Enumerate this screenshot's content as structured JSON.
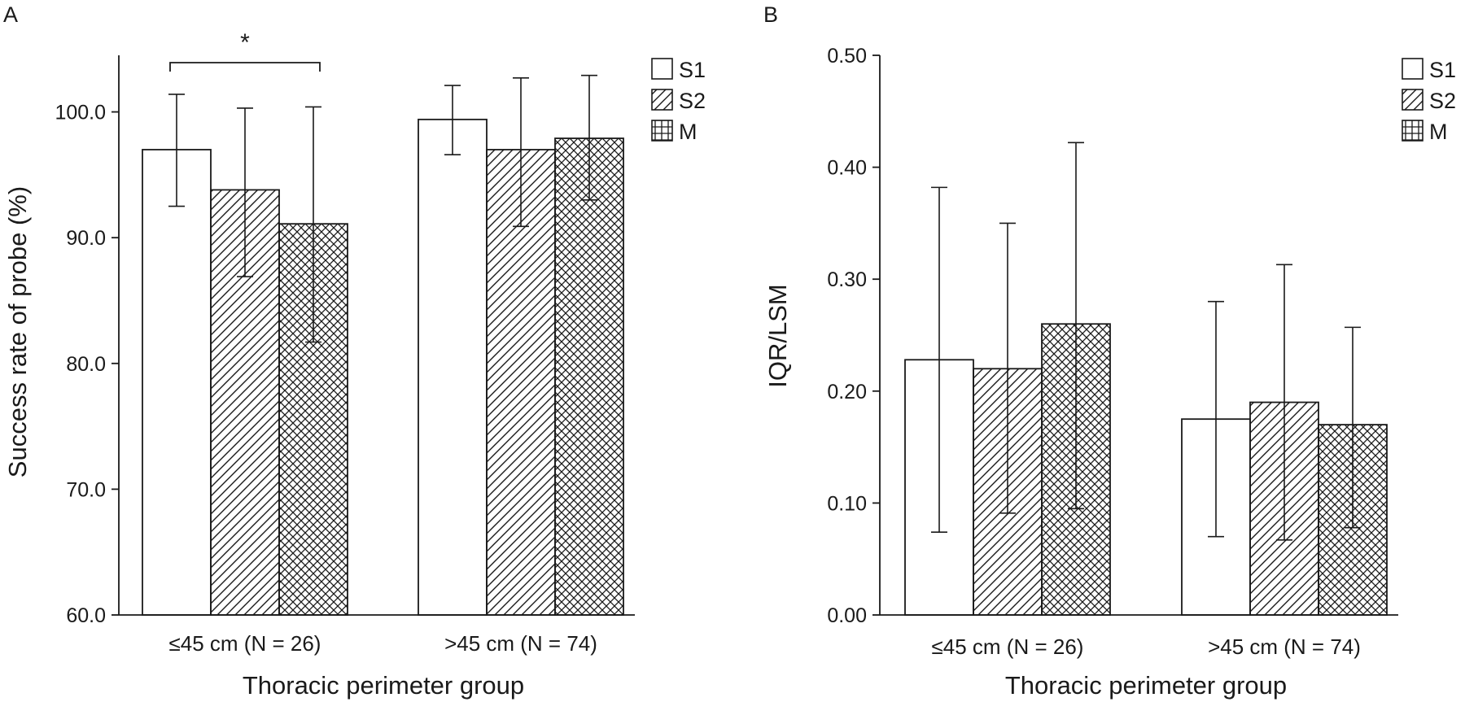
{
  "chart_data": [
    {
      "panel": "A",
      "type": "bar",
      "xlabel": "Thoracic perimeter group",
      "ylabel": "Success rate of probe (%)",
      "ylim": [
        60,
        104.5
      ],
      "yticks": [
        "60.0",
        "70.0",
        "80.0",
        "90.0",
        "100.0"
      ],
      "categories": [
        "≤45 cm (N = 26)",
        ">45 cm (N = 74)"
      ],
      "series": [
        {
          "name": "S1",
          "pattern": "open",
          "values": [
            97.0,
            99.4
          ],
          "error_low": [
            92.5,
            96.6
          ],
          "error_high": [
            101.4,
            102.1
          ]
        },
        {
          "name": "S2",
          "pattern": "diagonal-hatch",
          "values": [
            93.8,
            97.0
          ],
          "error_low": [
            86.9,
            90.9
          ],
          "error_high": [
            100.3,
            102.7
          ]
        },
        {
          "name": "M",
          "pattern": "cross-hatch",
          "values": [
            91.1,
            97.9
          ],
          "error_low": [
            81.7,
            93.0
          ],
          "error_high": [
            100.4,
            102.9
          ]
        }
      ],
      "annotations": [
        {
          "text": "*",
          "between": [
            "S1",
            "M"
          ],
          "category": "≤45 cm (N = 26)"
        }
      ],
      "legend": "top-right",
      "grid": false
    },
    {
      "panel": "B",
      "type": "bar",
      "xlabel": "Thoracic perimeter group",
      "ylabel": "IQR/LSM",
      "ylim": [
        0,
        0.5
      ],
      "yticks": [
        "0.00",
        "0.10",
        "0.20",
        "0.30",
        "0.40",
        "0.50"
      ],
      "categories": [
        "≤45 cm (N = 26)",
        ">45 cm (N = 74)"
      ],
      "series": [
        {
          "name": "S1",
          "pattern": "open",
          "values": [
            0.228,
            0.175
          ],
          "error_low": [
            0.074,
            0.07
          ],
          "error_high": [
            0.382,
            0.28
          ]
        },
        {
          "name": "S2",
          "pattern": "diagonal-hatch",
          "values": [
            0.22,
            0.19
          ],
          "error_low": [
            0.091,
            0.067
          ],
          "error_high": [
            0.35,
            0.313
          ]
        },
        {
          "name": "M",
          "pattern": "cross-hatch",
          "values": [
            0.26,
            0.17
          ],
          "error_low": [
            0.095,
            0.078
          ],
          "error_high": [
            0.422,
            0.257
          ]
        }
      ],
      "legend": "top-right",
      "grid": false
    }
  ]
}
